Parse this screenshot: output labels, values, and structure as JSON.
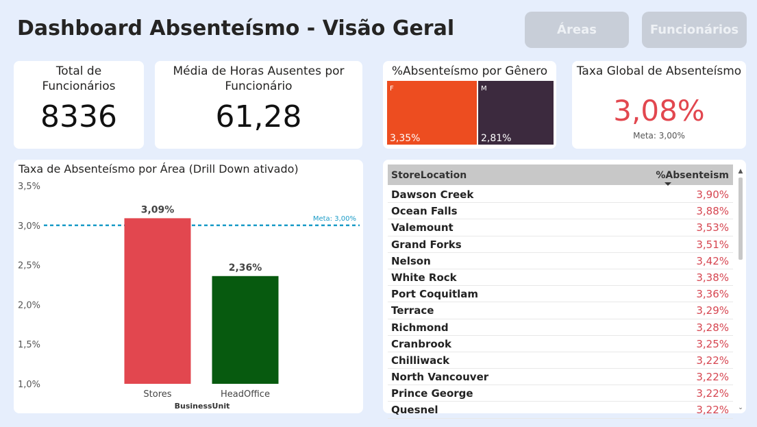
{
  "header": {
    "title": "Dashboard Absenteísmo - Visão Geral",
    "btn_areas": "Áreas",
    "btn_funcionarios": "Funcionários"
  },
  "kpi_total": {
    "label": "Total de\nFuncionários",
    "label_line1": "Total de",
    "label_line2": "Funcionários",
    "value": "8336"
  },
  "kpi_media": {
    "label_line1": "Média de Horas Ausentes por",
    "label_line2": "Funcionário",
    "value": "61,28"
  },
  "gender": {
    "title": "%Absenteísmo por Gênero",
    "items": [
      {
        "code": "F",
        "value": "3,35%",
        "share": 0.544,
        "color": "#ed4d20"
      },
      {
        "code": "M",
        "value": "2,81%",
        "share": 0.456,
        "color": "#3c2a3e"
      }
    ]
  },
  "global": {
    "title": "Taxa Global de Absenteísmo",
    "value": "3,08%",
    "meta": "Meta: 3,00%",
    "color": "#e2474f"
  },
  "chart_data": {
    "type": "bar",
    "title": "Taxa de Absenteísmo por Área (Drill Down ativado)",
    "xlabel": "BusinessUnit",
    "ylabel": "",
    "categories": [
      "Stores",
      "HeadOffice"
    ],
    "values": [
      3.09,
      2.36
    ],
    "value_labels": [
      "3,09%",
      "2,36%"
    ],
    "colors": [
      "#e2474f",
      "#075a0f"
    ],
    "ylim": [
      1.0,
      3.5
    ],
    "yticks": [
      1.0,
      1.5,
      2.0,
      2.5,
      3.0,
      3.5
    ],
    "ytick_labels": [
      "1,0%",
      "1,5%",
      "2,0%",
      "2,5%",
      "3,0%",
      "3,5%"
    ],
    "reference_line": {
      "value": 3.0,
      "label": "Meta: 3,00%",
      "color": "#1a9bc7"
    },
    "grid": false
  },
  "table": {
    "col1": "StoreLocation",
    "col2": "%Absenteism",
    "rows": [
      {
        "loc": "Dawson Creek",
        "val": "3,90%"
      },
      {
        "loc": "Ocean Falls",
        "val": "3,88%"
      },
      {
        "loc": "Valemount",
        "val": "3,53%"
      },
      {
        "loc": "Grand Forks",
        "val": "3,51%"
      },
      {
        "loc": "Nelson",
        "val": "3,42%"
      },
      {
        "loc": "White Rock",
        "val": "3,38%"
      },
      {
        "loc": "Port Coquitlam",
        "val": "3,36%"
      },
      {
        "loc": "Terrace",
        "val": "3,29%"
      },
      {
        "loc": "Richmond",
        "val": "3,28%"
      },
      {
        "loc": "Cranbrook",
        "val": "3,25%"
      },
      {
        "loc": "Chilliwack",
        "val": "3,22%"
      },
      {
        "loc": "North Vancouver",
        "val": "3,22%"
      },
      {
        "loc": "Prince George",
        "val": "3,22%"
      },
      {
        "loc": "Quesnel",
        "val": "3,22%"
      }
    ]
  },
  "icons": {
    "scroll_up": "chevron-up-icon",
    "scroll_down": "chevron-down-icon",
    "sort": "sort-desc-icon"
  }
}
